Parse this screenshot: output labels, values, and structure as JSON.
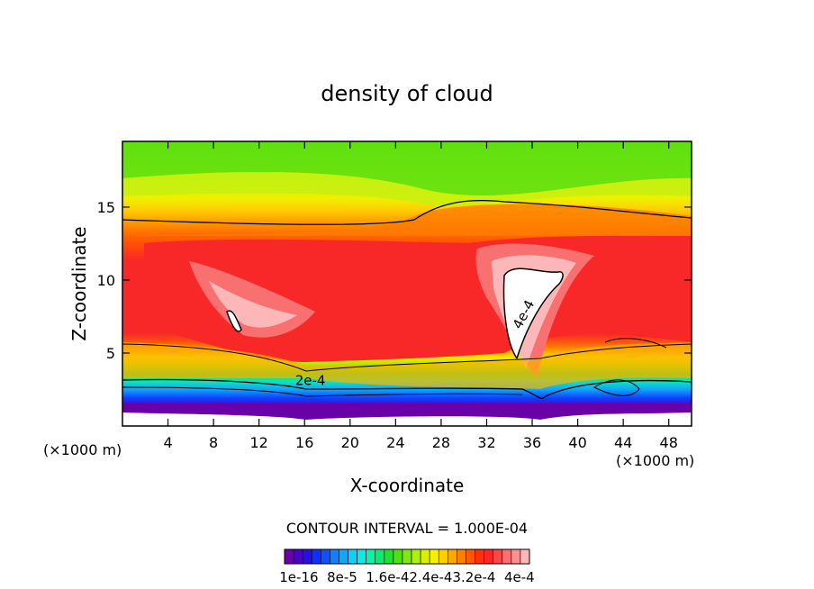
{
  "chart_data": {
    "type": "heatmap",
    "title": "density of cloud",
    "xlabel": "X-coordinate",
    "ylabel": "Z-coordinate",
    "x_unit_note": "(×1000 m)",
    "x_unit_note_right": "(×1000 m)",
    "xlim": [
      0,
      50
    ],
    "ylim": [
      0,
      19.5
    ],
    "x_ticks": [
      4,
      8,
      12,
      16,
      20,
      24,
      28,
      32,
      36,
      40,
      44,
      48
    ],
    "y_ticks": [
      5,
      10,
      15
    ],
    "contour_labels": [
      {
        "text": "2e-4",
        "x": 16.5,
        "z": 2.8
      },
      {
        "text": "4e-4",
        "x": 35.6,
        "z": 7.5
      }
    ],
    "contour_interval_text": "CONTOUR INTERVAL = 1.000E-04",
    "colorbar": {
      "tick_labels": [
        "1e-16",
        "8e-5",
        "1.6e-4",
        "2.4e-4",
        "3.2e-4",
        "4e-4"
      ],
      "label_text": "1e-16  8e-5  1.6e-42.4e-43.2e-4  4e-4",
      "colors": [
        "#6a00a8",
        "#4a00c8",
        "#2a10e0",
        "#1030ff",
        "#1050ff",
        "#1080ff",
        "#10a8ff",
        "#10d0ff",
        "#10e8e0",
        "#10f0a8",
        "#10e870",
        "#20e030",
        "#50e010",
        "#80e810",
        "#b0f010",
        "#d8f000",
        "#f8f000",
        "#ffd000",
        "#ffa800",
        "#ff8000",
        "#ff5800",
        "#ff3010",
        "#f82828",
        "#f84848",
        "#f87070",
        "#f89090",
        "#fcb8b8"
      ]
    }
  }
}
